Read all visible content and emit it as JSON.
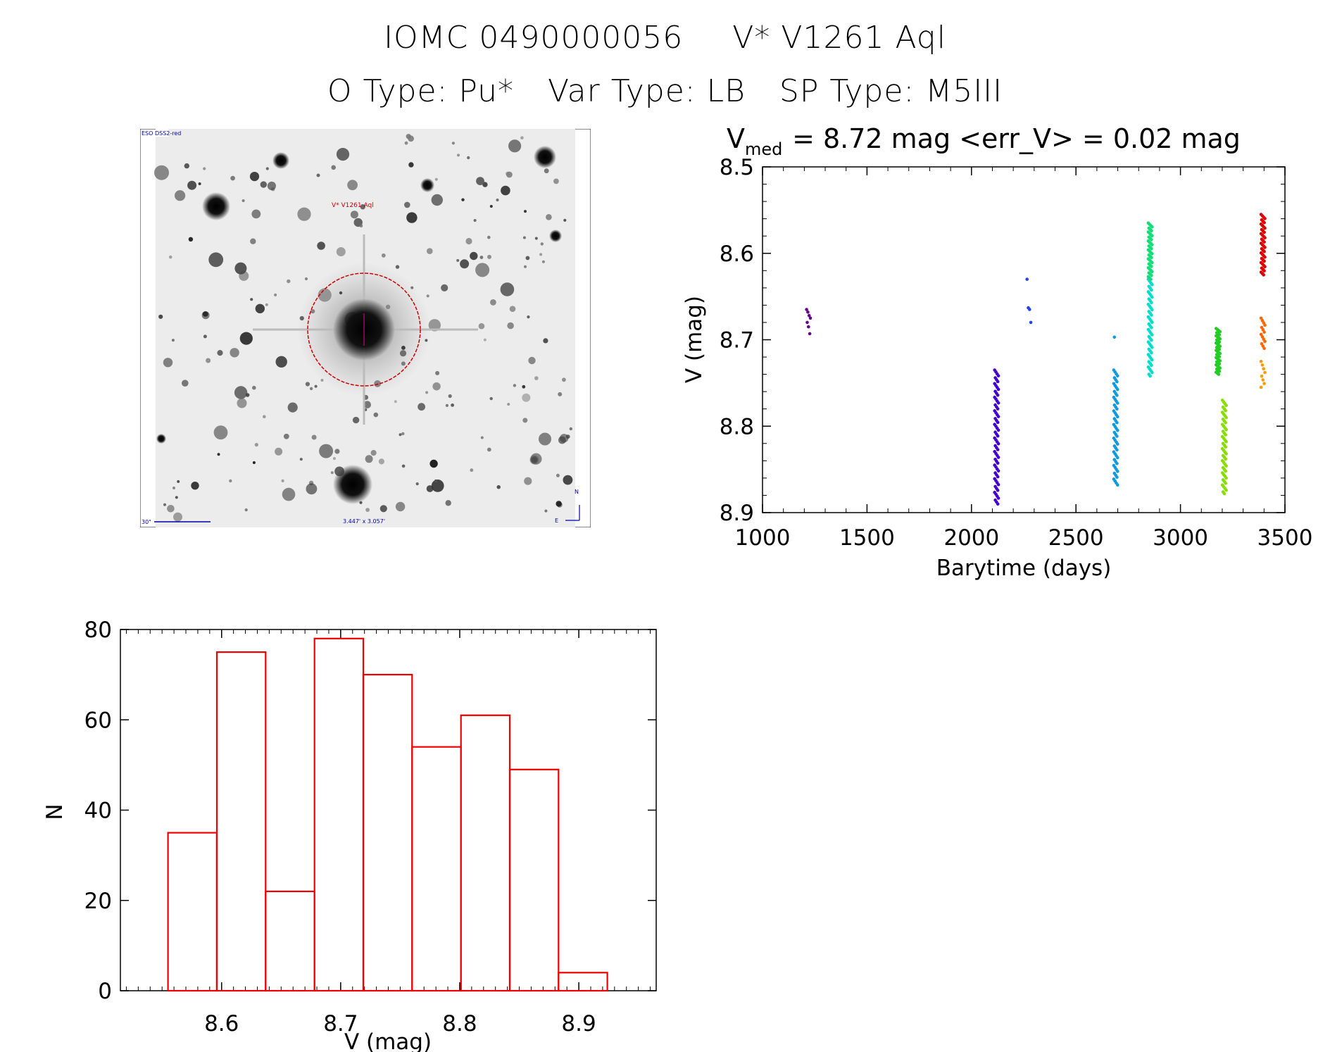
{
  "header": {
    "object_id": "IOMC 0490000056",
    "star_name": "V* V1261 Aql",
    "o_type": "O Type: Pu*",
    "var_type": "Var Type: LB",
    "sp_type": "SP Type: M5III"
  },
  "sky_image": {
    "survey_label": "ESO DSS2-red",
    "target_label": "V* V1261 Aql",
    "scale_label": "30\"",
    "fov_label": "3.447' x 3.057'",
    "north_label": "N",
    "east_label": "E",
    "colors": {
      "circle": "#cc0000",
      "annotation": "#0000aa"
    }
  },
  "chart_data": [
    {
      "type": "scatter",
      "title_prefix": "V",
      "title_subscript": "med",
      "title_rest": " = 8.72 mag <err_V> = 0.02 mag",
      "xlabel": "Barytime (days)",
      "ylabel": "V (mag)",
      "xlim": [
        1000,
        3500
      ],
      "ylim": [
        8.5,
        8.9
      ],
      "y_inverted": true,
      "xticks": [
        1000,
        1500,
        2000,
        2500,
        3000,
        3500
      ],
      "yticks": [
        8.5,
        8.6,
        8.7,
        8.8,
        8.9
      ],
      "series": [
        {
          "name": "season1",
          "color": "#660088",
          "x": 1220,
          "ylo": 8.665,
          "yhi": 8.695,
          "points": [
            8.665,
            8.668,
            8.672,
            8.675,
            8.68,
            8.685,
            8.693
          ]
        },
        {
          "name": "season2",
          "color": "#4400cc",
          "x": 2120,
          "ylo": 8.735,
          "yhi": 8.89,
          "n": 70
        },
        {
          "name": "season3",
          "color": "#2244ee",
          "x": 2275,
          "ylo": 8.63,
          "yhi": 8.68,
          "points": [
            8.63,
            8.663,
            8.665,
            8.68
          ]
        },
        {
          "name": "season4",
          "color": "#1199dd",
          "x": 2690,
          "ylo": 8.735,
          "yhi": 8.868,
          "n": 60,
          "extra": [
            8.697
          ]
        },
        {
          "name": "season5",
          "color": "#00ddcc",
          "x": 2855,
          "ylo": 8.63,
          "yhi": 8.742,
          "n": 55
        },
        {
          "name": "season6",
          "color": "#11dd77",
          "x": 2855,
          "ylo": 8.565,
          "yhi": 8.63,
          "n": 45
        },
        {
          "name": "season7",
          "color": "#22cc22",
          "x": 3180,
          "ylo": 8.687,
          "yhi": 8.74,
          "n": 45
        },
        {
          "name": "season8",
          "color": "#88dd00",
          "x": 3210,
          "ylo": 8.77,
          "yhi": 8.878,
          "n": 55
        },
        {
          "name": "season9",
          "color": "#ff6600",
          "x": 3395,
          "ylo": 8.675,
          "yhi": 8.71,
          "n": 14
        },
        {
          "name": "season10",
          "color": "#ff9900",
          "x": 3395,
          "ylo": 8.725,
          "yhi": 8.755,
          "n": 8
        },
        {
          "name": "season11",
          "color": "#dd0000",
          "x": 3395,
          "ylo": 8.555,
          "yhi": 8.625,
          "n": 45
        }
      ]
    },
    {
      "type": "bar",
      "xlabel": "V (mag)",
      "ylabel": "N",
      "xlim": [
        8.515,
        8.965
      ],
      "ylim": [
        0,
        80
      ],
      "xticks": [
        8.6,
        8.7,
        8.8,
        8.9
      ],
      "yticks": [
        0,
        20,
        40,
        60,
        80
      ],
      "bin_edges": [
        8.555,
        8.596,
        8.637,
        8.678,
        8.719,
        8.76,
        8.801,
        8.842,
        8.883,
        8.924
      ],
      "values": [
        35,
        75,
        22,
        78,
        70,
        54,
        61,
        49,
        4
      ],
      "color": "#ee0000"
    }
  ]
}
